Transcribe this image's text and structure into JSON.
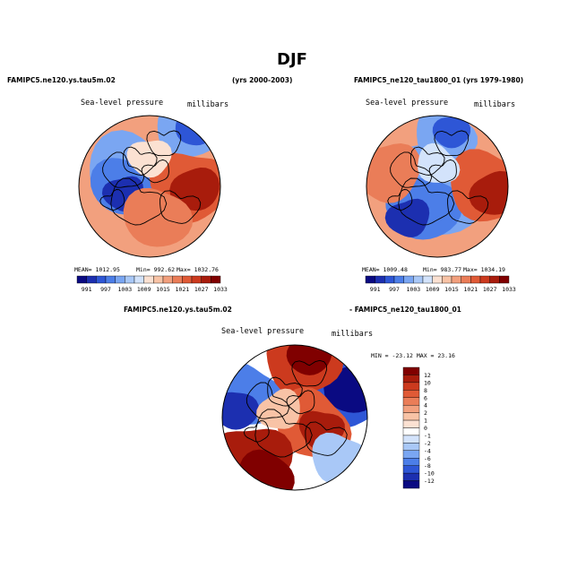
{
  "figure": {
    "title": "DJF",
    "panel_left_case": "FAMIPC5.ne120.ys.tau5m.02",
    "panel_left_years": "(yrs 2000-2003)",
    "panel_right_case": "FAMIPC5_ne120_tau1800_01 (yrs 1979-1980)",
    "diff_case_a": "FAMIPC5.ne120.ys.tau5m.02",
    "diff_case_b": "- FAMIPC5_ne120_tau1800_01"
  },
  "chart_data": [
    {
      "type": "heatmap",
      "projection": "north-polar-stereographic",
      "title": "Sea-level pressure",
      "units": "millibars",
      "stats": {
        "mean": "MEAN= 1012.95",
        "min": "Min= 992.62",
        "max": "Max= 1032.76"
      },
      "colorbar": {
        "orientation": "horizontal",
        "ticks": [
          "991",
          "997",
          "1003",
          "1009",
          "1015",
          "1021",
          "1027",
          "1033"
        ],
        "colors": [
          "#0a0a82",
          "#1c2fb0",
          "#2e56d6",
          "#4c7ee8",
          "#7aa6f2",
          "#a9c8f7",
          "#d3e3fb",
          "#fbe1d2",
          "#f8c3a6",
          "#f2a07e",
          "#ea7d58",
          "#e05a36",
          "#cc3a1e",
          "#a81c0c",
          "#800000"
        ]
      }
    },
    {
      "type": "heatmap",
      "projection": "north-polar-stereographic",
      "title": "Sea-level pressure",
      "units": "millibars",
      "stats": {
        "mean": "MEAN= 1009.48",
        "min": "Min= 983.77",
        "max": "Max= 1034.19"
      },
      "colorbar": {
        "orientation": "horizontal",
        "ticks": [
          "991",
          "997",
          "1003",
          "1009",
          "1015",
          "1021",
          "1027",
          "1033"
        ],
        "colors": [
          "#0a0a82",
          "#1c2fb0",
          "#2e56d6",
          "#4c7ee8",
          "#7aa6f2",
          "#a9c8f7",
          "#d3e3fb",
          "#fbe1d2",
          "#f8c3a6",
          "#f2a07e",
          "#ea7d58",
          "#e05a36",
          "#cc3a1e",
          "#a81c0c",
          "#800000"
        ]
      }
    },
    {
      "type": "heatmap",
      "projection": "north-polar-stereographic",
      "title": "Sea-level pressure",
      "units": "millibars",
      "stats": {
        "minmax": "MIN = -23.12  MAX =  23.16"
      },
      "colorbar": {
        "orientation": "vertical",
        "ticks": [
          "12",
          "10",
          "8",
          "6",
          "4",
          "2",
          "1",
          "0",
          "-1",
          "-2",
          "-4",
          "-6",
          "-8",
          "-10",
          "-12"
        ],
        "colors": [
          "#800000",
          "#a81c0c",
          "#cc3a1e",
          "#e05a36",
          "#ea7d58",
          "#f2a07e",
          "#f8c3a6",
          "#fbe1d2",
          "#ffffff",
          "#d3e3fb",
          "#a9c8f7",
          "#7aa6f2",
          "#4c7ee8",
          "#2e56d6",
          "#1c2fb0",
          "#0a0a82"
        ]
      }
    }
  ]
}
